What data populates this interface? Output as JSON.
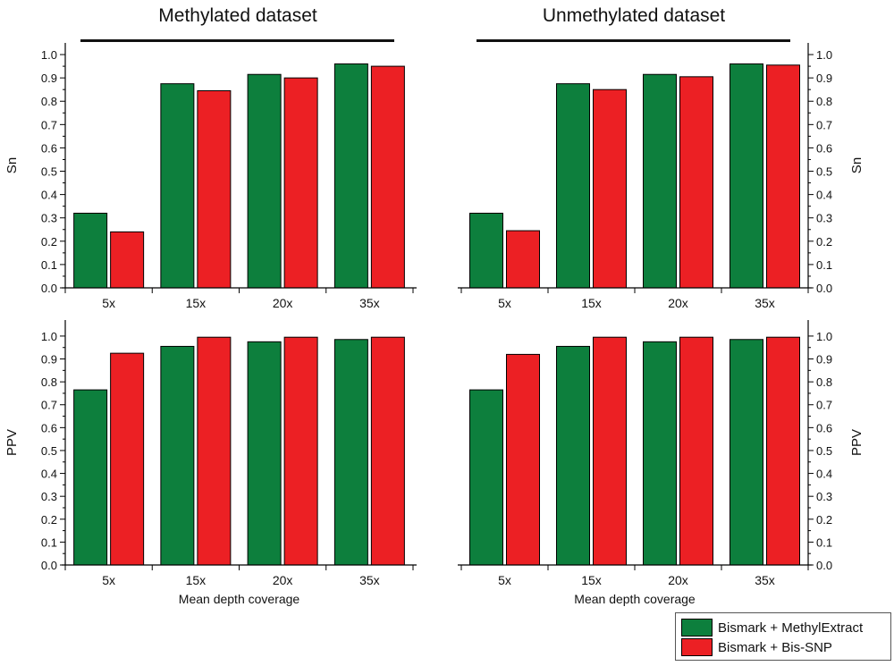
{
  "colors": {
    "series_1": "#0d7f3d",
    "series_2": "#ec2024",
    "axis": "#000000",
    "rule": "#111111"
  },
  "titles": {
    "left": "Methylated dataset",
    "right": "Unmethylated dataset"
  },
  "legend": {
    "items": [
      {
        "label": "Bismark + MethylExtract",
        "color": "#0d7f3d"
      },
      {
        "label": "Bismark + Bis-SNP",
        "color": "#ec2024"
      }
    ]
  },
  "chart_data": [
    {
      "type": "bar",
      "dataset": "Methylated dataset",
      "categories": [
        "5x",
        "15x",
        "20x",
        "35x"
      ],
      "series": [
        {
          "name": "Bismark + MethylExtract",
          "values": [
            0.32,
            0.875,
            0.915,
            0.96
          ]
        },
        {
          "name": "Bismark + Bis-SNP",
          "values": [
            0.24,
            0.845,
            0.9,
            0.95
          ]
        }
      ],
      "xlabel": "",
      "ylabel": "Sn",
      "ylim": [
        0,
        1.05
      ],
      "yticks": [
        "0.0",
        "0.1",
        "0.2",
        "0.3",
        "0.4",
        "0.5",
        "0.6",
        "0.7",
        "0.8",
        "0.9",
        "1.0"
      ],
      "y_axis_side": "left"
    },
    {
      "type": "bar",
      "dataset": "Unmethylated dataset",
      "categories": [
        "5x",
        "15x",
        "20x",
        "35x"
      ],
      "series": [
        {
          "name": "Bismark + MethylExtract",
          "values": [
            0.32,
            0.875,
            0.915,
            0.96
          ]
        },
        {
          "name": "Bismark + Bis-SNP",
          "values": [
            0.245,
            0.85,
            0.905,
            0.955
          ]
        }
      ],
      "xlabel": "",
      "ylabel": "Sn",
      "ylim": [
        0,
        1.05
      ],
      "yticks": [
        "0.0",
        "0.1",
        "0.2",
        "0.3",
        "0.4",
        "0.5",
        "0.6",
        "0.7",
        "0.8",
        "0.9",
        "1.0"
      ],
      "y_axis_side": "right"
    },
    {
      "type": "bar",
      "dataset": "Methylated dataset",
      "categories": [
        "5x",
        "15x",
        "20x",
        "35x"
      ],
      "series": [
        {
          "name": "Bismark + MethylExtract",
          "values": [
            0.765,
            0.955,
            0.975,
            0.985
          ]
        },
        {
          "name": "Bismark + Bis-SNP",
          "values": [
            0.925,
            0.995,
            0.995,
            0.995
          ]
        }
      ],
      "xlabel": "Mean depth coverage",
      "ylabel": "PPV",
      "ylim": [
        0,
        1.07
      ],
      "yticks": [
        "0.0",
        "0.1",
        "0.2",
        "0.3",
        "0.4",
        "0.5",
        "0.6",
        "0.7",
        "0.8",
        "0.9",
        "1.0"
      ],
      "y_axis_side": "left"
    },
    {
      "type": "bar",
      "dataset": "Unmethylated dataset",
      "categories": [
        "5x",
        "15x",
        "20x",
        "35x"
      ],
      "series": [
        {
          "name": "Bismark + MethylExtract",
          "values": [
            0.765,
            0.955,
            0.975,
            0.985
          ]
        },
        {
          "name": "Bismark + Bis-SNP",
          "values": [
            0.92,
            0.995,
            0.995,
            0.995
          ]
        }
      ],
      "xlabel": "Mean depth coverage",
      "ylabel": "PPV",
      "ylim": [
        0,
        1.07
      ],
      "yticks": [
        "0.0",
        "0.1",
        "0.2",
        "0.3",
        "0.4",
        "0.5",
        "0.6",
        "0.7",
        "0.8",
        "0.9",
        "1.0"
      ],
      "y_axis_side": "right"
    }
  ]
}
